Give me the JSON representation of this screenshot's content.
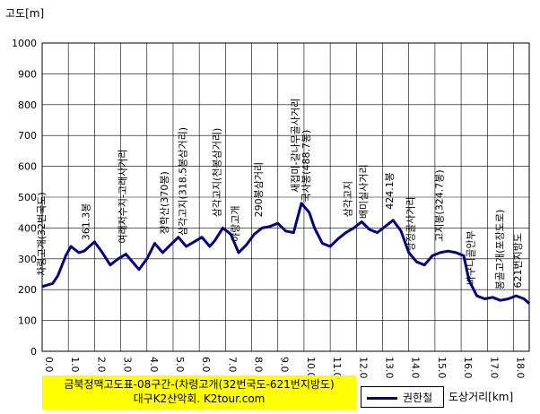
{
  "chart_data": {
    "type": "line",
    "ylabel": "고도[m]",
    "xlabel": "도상거리[km]",
    "title_lines": [
      "금북정맥고도표-08구간-(차령고개(32번국도-621번지방도)",
      "대구K2산악회. K2tour.com"
    ],
    "ylim": [
      0,
      1000
    ],
    "yticks": [
      0,
      100,
      200,
      300,
      400,
      500,
      600,
      700,
      800,
      900,
      1000
    ],
    "xlim": [
      0,
      18.6
    ],
    "xticks": [
      0.0,
      1.0,
      2.0,
      3.0,
      4.0,
      5.0,
      6.0,
      7.0,
      8.0,
      9.0,
      10.0,
      11.0,
      12.0,
      13.0,
      14.0,
      15.0,
      16.0,
      17.0,
      18.0
    ],
    "xtick_labels": [
      "0.0",
      "1.0",
      "2.0",
      "3.0",
      "4.0",
      "5.0",
      "6.0",
      "7.0",
      "8.0",
      "9.0",
      "10.0",
      "11.0",
      "12.0",
      "13.0",
      "14.0",
      "15.0",
      "16.0",
      "17.0",
      "18.0"
    ],
    "grid": true,
    "legend_position": "bottom-right",
    "series_color": "#000080",
    "series": [
      {
        "name": "권한철",
        "x": [
          0.0,
          0.4,
          0.6,
          0.9,
          1.1,
          1.4,
          1.6,
          2.0,
          2.3,
          2.6,
          2.9,
          3.2,
          3.5,
          3.7,
          4.0,
          4.3,
          4.6,
          4.9,
          5.2,
          5.5,
          5.8,
          6.1,
          6.4,
          6.6,
          6.9,
          7.2,
          7.5,
          7.8,
          8.1,
          8.4,
          8.7,
          9.0,
          9.3,
          9.6,
          9.9,
          10.2,
          10.4,
          10.7,
          11.0,
          11.3,
          11.6,
          11.9,
          12.2,
          12.5,
          12.8,
          13.1,
          13.4,
          13.7,
          14.0,
          14.3,
          14.6,
          14.9,
          15.2,
          15.5,
          15.8,
          16.1,
          16.3,
          16.6,
          16.9,
          17.2,
          17.5,
          17.8,
          18.1,
          18.4,
          18.6
        ],
        "y": [
          210,
          220,
          245,
          310,
          340,
          320,
          325,
          355,
          320,
          280,
          300,
          315,
          285,
          265,
          300,
          350,
          320,
          345,
          370,
          340,
          355,
          370,
          340,
          360,
          400,
          380,
          320,
          345,
          380,
          400,
          405,
          415,
          390,
          385,
          480,
          450,
          400,
          350,
          340,
          365,
          385,
          400,
          420,
          395,
          385,
          405,
          425,
          390,
          320,
          290,
          280,
          310,
          320,
          325,
          320,
          310,
          230,
          180,
          170,
          175,
          165,
          170,
          180,
          170,
          155
        ]
      }
    ],
    "annotations": [
      {
        "x": 0.1,
        "text": "차령고개(32번국도)"
      },
      {
        "x": 1.8,
        "text": "361.3봉"
      },
      {
        "x": 3.2,
        "text": "여래저수지-고래사거리"
      },
      {
        "x": 4.8,
        "text": "장학산(370봉)"
      },
      {
        "x": 5.5,
        "text": "삼각고지(318.5봉삼거리)"
      },
      {
        "x": 6.8,
        "text": "삼각고지(천봉삼거리)"
      },
      {
        "x": 7.5,
        "text": "야랑고개"
      },
      {
        "x": 8.4,
        "text": "290봉삼거리"
      },
      {
        "x": 9.8,
        "text": "새접미-갈나무골사거리"
      },
      {
        "x": 10.2,
        "text": "국사봉(488.7봉)"
      },
      {
        "x": 11.8,
        "text": "삼각고지"
      },
      {
        "x": 12.4,
        "text": "배미실사거리"
      },
      {
        "x": 13.4,
        "text": "424.1봉"
      },
      {
        "x": 14.2,
        "text": "낭정골사거리"
      },
      {
        "x": 15.3,
        "text": "고지봉(324.7봉)"
      },
      {
        "x": 16.5,
        "text": "바구니골안부"
      },
      {
        "x": 17.6,
        "text": "봉골고개(포장도로)"
      },
      {
        "x": 18.3,
        "text": "621번지방도"
      }
    ]
  }
}
